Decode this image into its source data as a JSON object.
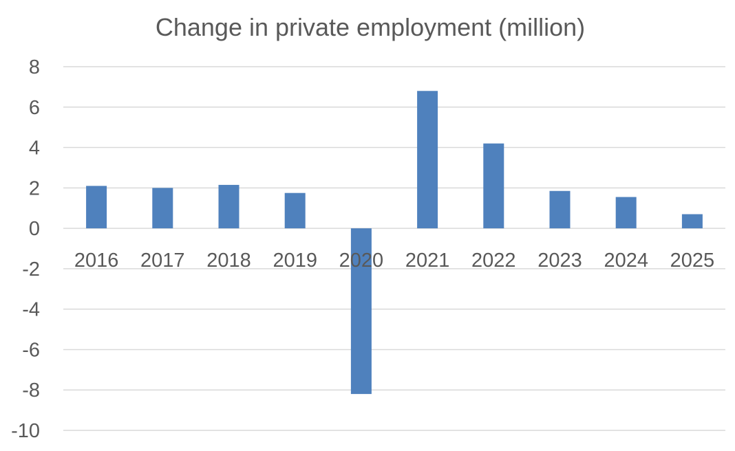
{
  "chart_data": {
    "type": "bar",
    "title": "Change in private employment (million)",
    "categories": [
      "2016",
      "2017",
      "2018",
      "2019",
      "2020",
      "2021",
      "2022",
      "2023",
      "2024",
      "2025"
    ],
    "values": [
      2.1,
      2.0,
      2.15,
      1.75,
      -8.2,
      6.8,
      4.2,
      1.85,
      1.55,
      0.7
    ],
    "ylim": [
      -10,
      8
    ],
    "yticks": [
      "8",
      "6",
      "4",
      "2",
      "0",
      "-2",
      "-4",
      "-6",
      "-8",
      "-10"
    ],
    "xlabel": "",
    "ylabel": "",
    "grid": true,
    "legend": "none",
    "bar_color": "#4F81BD",
    "grid_color": "#D9D9D9"
  }
}
